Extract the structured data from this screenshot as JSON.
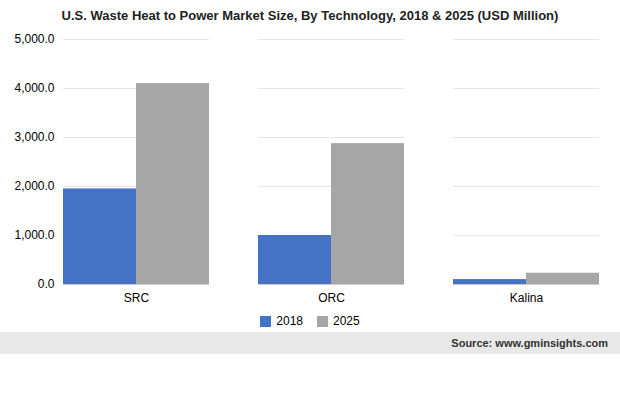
{
  "chart_data": {
    "type": "bar",
    "title": "U.S. Waste Heat to Power Market Size, By Technology, 2018 & 2025 (USD Million)",
    "categories": [
      "SRC",
      "ORC",
      "Kalina"
    ],
    "series": [
      {
        "name": "2018",
        "color": "#4472c4",
        "values": [
          1950,
          1000,
          100
        ]
      },
      {
        "name": "2025",
        "color": "#a6a6a6",
        "values": [
          4100,
          2875,
          230
        ]
      }
    ],
    "ylim": [
      0,
      5000
    ],
    "yticks": [
      {
        "value": 0,
        "label": "0.0"
      },
      {
        "value": 1000,
        "label": "1,000.0"
      },
      {
        "value": 2000,
        "label": "2,000.0"
      },
      {
        "value": 3000,
        "label": "3,000.0"
      },
      {
        "value": 4000,
        "label": "4,000.0"
      },
      {
        "value": 5000,
        "label": "5,000.0"
      }
    ],
    "grid": true,
    "legend": "bottom",
    "annotations": [
      "Source: www.gminsights.com"
    ]
  }
}
